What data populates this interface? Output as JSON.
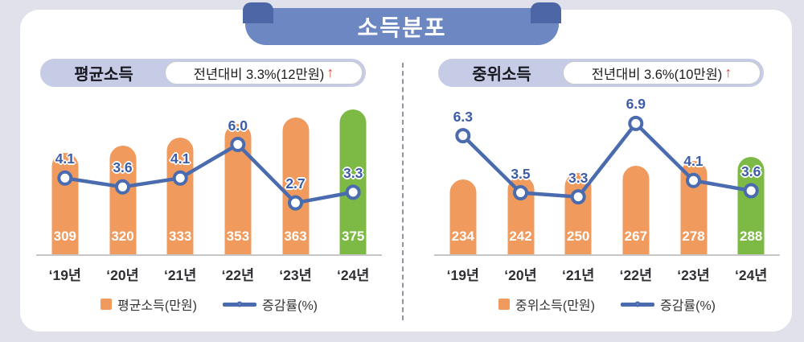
{
  "banner_title": "소득분포",
  "chart_data": [
    {
      "type": "bar+line",
      "title": "평균소득",
      "header": {
        "label": "평균소득",
        "badge_text": "전년대비 3.3%(12만원)",
        "arrow": "↑"
      },
      "categories": [
        "‘19년",
        "‘20년",
        "‘21년",
        "‘22년",
        "‘23년",
        "‘24년"
      ],
      "series": [
        {
          "name": "평균소득(만원)",
          "type": "bar",
          "values": [
            309,
            320,
            333,
            353,
            363,
            375
          ]
        },
        {
          "name": "증감률(%)",
          "type": "line",
          "values": [
            4.1,
            3.6,
            4.1,
            6.0,
            2.7,
            3.3
          ]
        }
      ],
      "highlight_index": 5,
      "bar_axis": {
        "min": 155,
        "max": 400
      },
      "line_axis": {
        "min": -0.3,
        "max": 8.8
      },
      "legend": [
        {
          "swatch": "bar",
          "label": "평균소득(만원)"
        },
        {
          "swatch": "line",
          "label": "증감률(%)"
        }
      ]
    },
    {
      "type": "bar+line",
      "title": "중위소득",
      "header": {
        "label": "중위소득",
        "badge_text": "전년대비 3.6%(10만원)",
        "arrow": "↑"
      },
      "categories": [
        "‘19년",
        "‘20년",
        "‘21년",
        "‘22년",
        "‘23년",
        "‘24년"
      ],
      "series": [
        {
          "name": "중위소득(만원)",
          "type": "bar",
          "values": [
            234,
            242,
            250,
            267,
            278,
            288
          ]
        },
        {
          "name": "증감률(%)",
          "type": "line",
          "values": [
            6.3,
            3.5,
            3.3,
            6.9,
            4.1,
            3.6
          ]
        }
      ],
      "highlight_index": 5,
      "bar_axis": {
        "min": 55,
        "max": 440
      },
      "line_axis": {
        "min": 0.4,
        "max": 8.3
      },
      "legend": [
        {
          "swatch": "bar",
          "label": "중위소득(만원)"
        },
        {
          "swatch": "line",
          "label": "증감률(%)"
        }
      ]
    }
  ],
  "colors": {
    "bar": "#F19A5E",
    "bar_highlight": "#7CBA45",
    "line": "#4A6CAE",
    "point_label": "#3C5CA9",
    "arrow_up": "#E2493B",
    "banner_bg": "#6C87C1",
    "banner_fold": "#4D66A6",
    "header_pill_bg": "#C6CCE5",
    "page_bg": "#E0E1EB"
  }
}
